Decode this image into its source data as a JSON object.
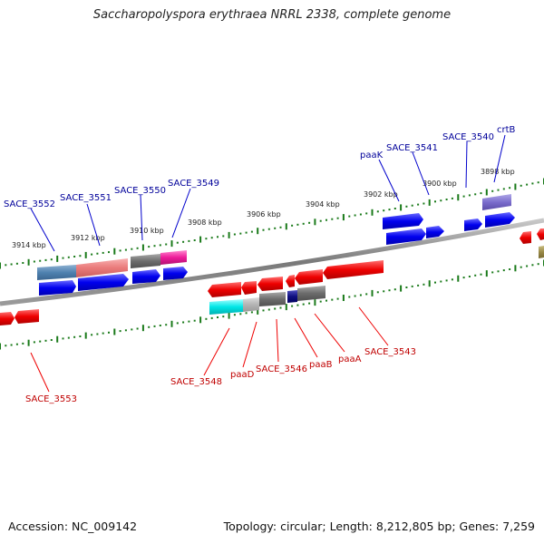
{
  "title": "Saccharopolyspora erythraea NRRL 2338, complete genome",
  "footer": {
    "accession": "Accession: NC_009142",
    "stats": "Topology: circular; Length: 8,212,805 bp; Genes: 7,259"
  },
  "ticks": [
    {
      "label": "3914 kbp"
    },
    {
      "label": "3912 kbp"
    },
    {
      "label": "3910 kbp"
    },
    {
      "label": "3908 kbp"
    },
    {
      "label": "3906 kbp"
    },
    {
      "label": "3904 kbp"
    },
    {
      "label": "3902 kbp"
    },
    {
      "label": "3900 kbp"
    },
    {
      "label": "3898 kbp"
    }
  ],
  "labels": {
    "top": [
      {
        "text": "SACE_3552"
      },
      {
        "text": "SACE_3551"
      },
      {
        "text": "SACE_3550"
      },
      {
        "text": "SACE_3549"
      },
      {
        "text": "paaK"
      },
      {
        "text": "SACE_3541"
      },
      {
        "text": "SACE_3540"
      },
      {
        "text": "crtB"
      }
    ],
    "bottom": [
      {
        "text": "SACE_3553"
      },
      {
        "text": "SACE_3548"
      },
      {
        "text": "paaD"
      },
      {
        "text": "SACE_3546"
      },
      {
        "text": "paaB"
      },
      {
        "text": "paaA"
      },
      {
        "text": "SACE_3543"
      }
    ]
  },
  "colors": {
    "forward": "#0000ee",
    "reverse": "#ee0000",
    "forward_label": "#00009a",
    "reverse_label": "#c00000",
    "tick": "#1a7a1a",
    "backbone": "#808080"
  }
}
